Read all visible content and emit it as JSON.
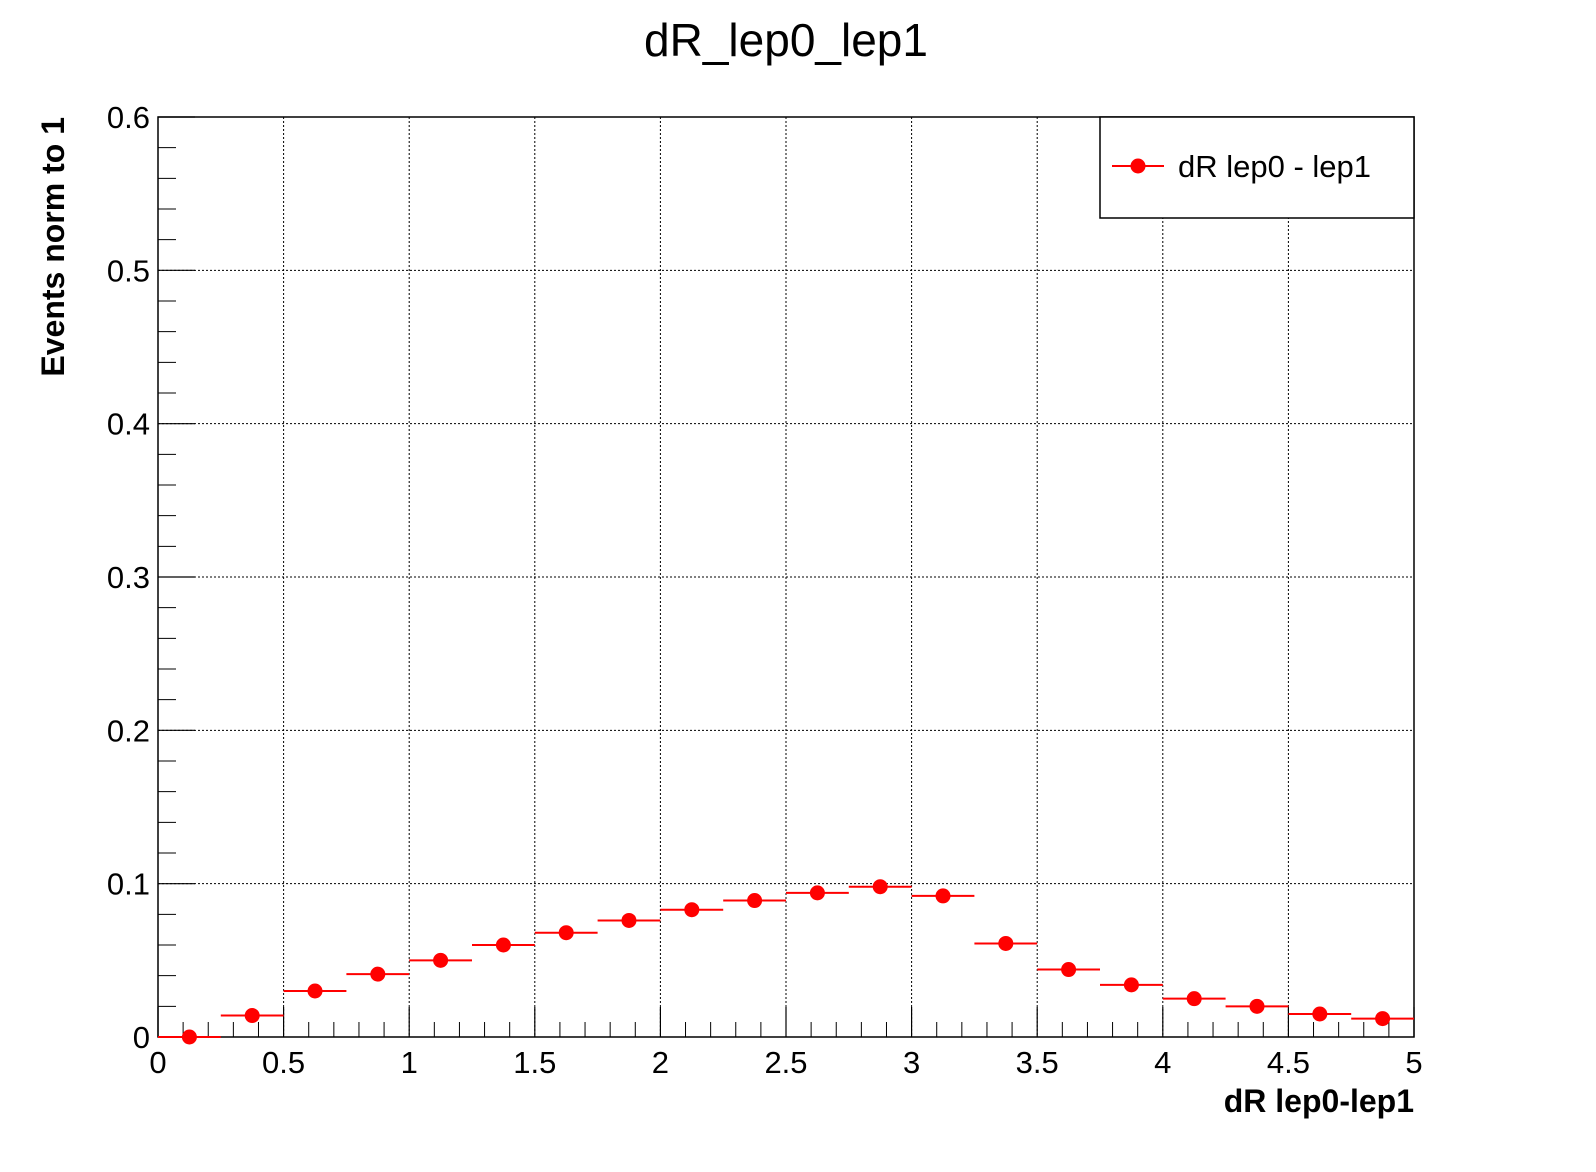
{
  "chart_data": {
    "type": "scatter",
    "title": "dR_lep0_lep1",
    "xlabel": "dR lep0-lep1",
    "ylabel": "Events norm to 1",
    "xlim": [
      0,
      5
    ],
    "ylim": [
      0,
      0.6
    ],
    "x_ticks": [
      "0",
      "0.5",
      "1",
      "1.5",
      "2",
      "2.5",
      "3",
      "3.5",
      "4",
      "4.5",
      "5"
    ],
    "y_ticks": [
      "0",
      "0.1",
      "0.2",
      "0.3",
      "0.4",
      "0.5",
      "0.6"
    ],
    "grid": true,
    "legend_position": "top-right",
    "bin_width": 0.25,
    "series": [
      {
        "name": "dR lep0 - lep1",
        "color": "#ff0000",
        "x": [
          0.125,
          0.375,
          0.625,
          0.875,
          1.125,
          1.375,
          1.625,
          1.875,
          2.125,
          2.375,
          2.625,
          2.875,
          3.125,
          3.375,
          3.625,
          3.875,
          4.125,
          4.375,
          4.625,
          4.875
        ],
        "values": [
          0.0,
          0.014,
          0.03,
          0.041,
          0.05,
          0.06,
          0.068,
          0.076,
          0.083,
          0.089,
          0.094,
          0.098,
          0.092,
          0.061,
          0.044,
          0.034,
          0.025,
          0.02,
          0.015,
          0.012
        ]
      }
    ]
  }
}
